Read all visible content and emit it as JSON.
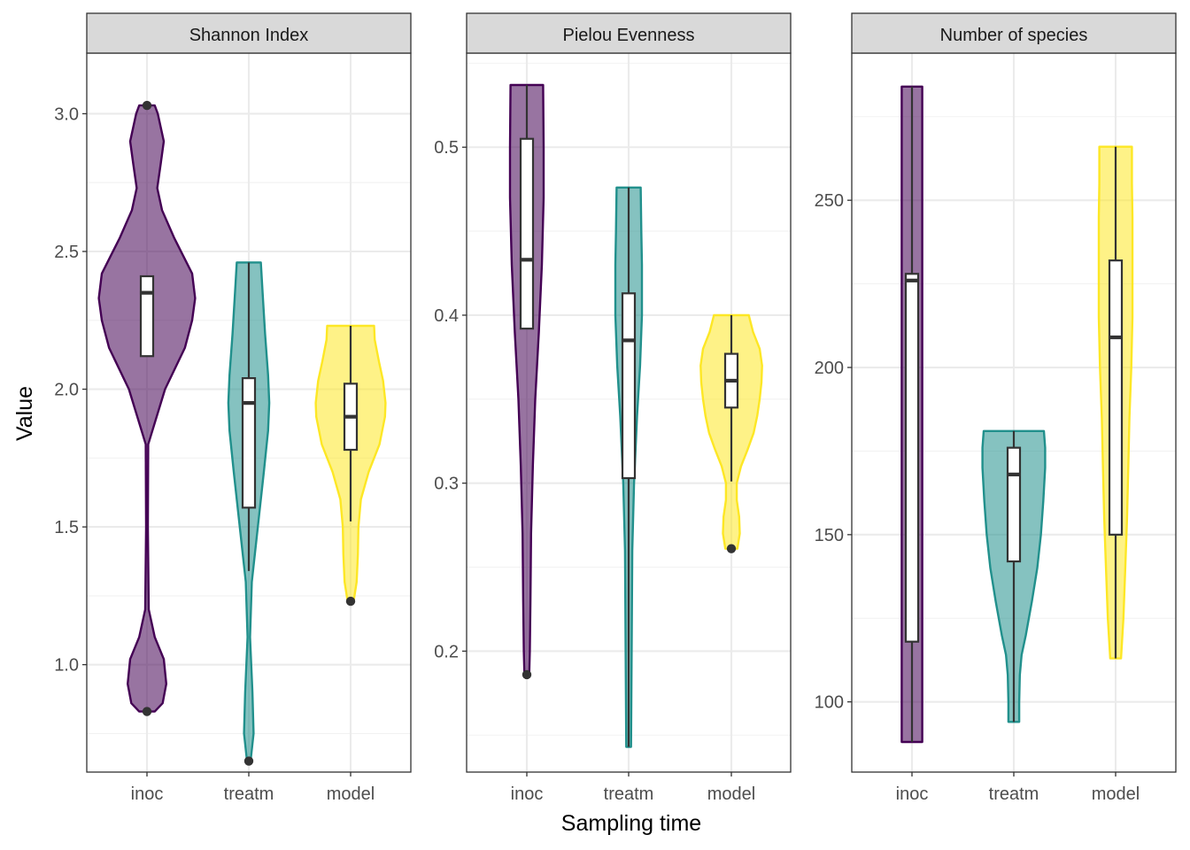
{
  "chart_data": {
    "type": "violin",
    "xlabel": "Sampling time",
    "ylabel": "Value",
    "categories": [
      "inoc",
      "treatm",
      "model"
    ],
    "colors": {
      "inoc": "#440154",
      "treatm": "#21908C",
      "model": "#FDE725"
    },
    "fill_opacity": 0.55,
    "grid": true,
    "legend": "none",
    "panels": [
      {
        "title": "Shannon Index",
        "ylim": [
          0.61,
          3.22
        ],
        "yticks": [
          1.0,
          1.5,
          2.0,
          2.5,
          3.0
        ],
        "tick_labels": [
          "1.0",
          "1.5",
          "2.0",
          "2.5",
          "3.0"
        ],
        "series": [
          {
            "name": "inoc",
            "min": 0.83,
            "max": 3.03,
            "q1": 2.12,
            "median": 2.35,
            "q3": 2.41,
            "whisker_low": 2.12,
            "whisker_high": 2.41,
            "outliers": [
              0.83,
              3.03
            ],
            "density": [
              [
                0.83,
                0.13
              ],
              [
                0.86,
                0.26
              ],
              [
                0.93,
                0.32
              ],
              [
                1.02,
                0.28
              ],
              [
                1.1,
                0.13
              ],
              [
                1.2,
                0.03
              ],
              [
                1.5,
                0.015
              ],
              [
                1.8,
                0.02
              ],
              [
                2.0,
                0.3
              ],
              [
                2.15,
                0.63
              ],
              [
                2.25,
                0.75
              ],
              [
                2.33,
                0.8
              ],
              [
                2.42,
                0.75
              ],
              [
                2.55,
                0.45
              ],
              [
                2.65,
                0.25
              ],
              [
                2.73,
                0.17
              ],
              [
                2.82,
                0.23
              ],
              [
                2.9,
                0.28
              ],
              [
                3.0,
                0.18
              ],
              [
                3.03,
                0.13
              ]
            ]
          },
          {
            "name": "treatm",
            "min": 0.65,
            "max": 2.46,
            "q1": 1.57,
            "median": 1.95,
            "q3": 2.04,
            "whisker_low": 1.34,
            "whisker_high": 2.46,
            "outliers": [
              0.65
            ],
            "density": [
              [
                0.65,
                0.03
              ],
              [
                0.75,
                0.08
              ],
              [
                0.9,
                0.06
              ],
              [
                1.1,
                0.02
              ],
              [
                1.3,
                0.05
              ],
              [
                1.5,
                0.15
              ],
              [
                1.7,
                0.25
              ],
              [
                1.85,
                0.32
              ],
              [
                1.95,
                0.34
              ],
              [
                2.05,
                0.32
              ],
              [
                2.2,
                0.27
              ],
              [
                2.35,
                0.23
              ],
              [
                2.46,
                0.2
              ]
            ]
          },
          {
            "name": "model",
            "min": 1.23,
            "max": 2.23,
            "q1": 1.78,
            "median": 1.9,
            "q3": 2.02,
            "whisker_low": 1.52,
            "whisker_high": 2.23,
            "outliers": [
              1.23
            ],
            "density": [
              [
                1.23,
                0.05
              ],
              [
                1.3,
                0.1
              ],
              [
                1.4,
                0.12
              ],
              [
                1.5,
                0.13
              ],
              [
                1.6,
                0.17
              ],
              [
                1.7,
                0.3
              ],
              [
                1.8,
                0.48
              ],
              [
                1.9,
                0.57
              ],
              [
                1.95,
                0.58
              ],
              [
                2.03,
                0.54
              ],
              [
                2.1,
                0.47
              ],
              [
                2.18,
                0.4
              ],
              [
                2.23,
                0.39
              ]
            ]
          }
        ]
      },
      {
        "title": "Pielou Evenness",
        "ylim": [
          0.128,
          0.556
        ],
        "yticks": [
          0.2,
          0.3,
          0.4,
          0.5
        ],
        "tick_labels": [
          "0.2",
          "0.3",
          "0.4",
          "0.5"
        ],
        "series": [
          {
            "name": "inoc",
            "min": 0.186,
            "max": 0.537,
            "q1": 0.392,
            "median": 0.433,
            "q3": 0.505,
            "whisker_low": 0.392,
            "whisker_high": 0.537,
            "outliers": [
              0.186
            ],
            "density": [
              [
                0.186,
                0.04
              ],
              [
                0.2,
                0.05
              ],
              [
                0.23,
                0.06
              ],
              [
                0.27,
                0.07
              ],
              [
                0.31,
                0.1
              ],
              [
                0.35,
                0.14
              ],
              [
                0.39,
                0.2
              ],
              [
                0.43,
                0.25
              ],
              [
                0.47,
                0.28
              ],
              [
                0.5,
                0.28
              ],
              [
                0.537,
                0.27
              ]
            ]
          },
          {
            "name": "treatm",
            "min": 0.143,
            "max": 0.476,
            "q1": 0.303,
            "median": 0.385,
            "q3": 0.413,
            "whisker_low": 0.143,
            "whisker_high": 0.476,
            "outliers": [],
            "density": [
              [
                0.143,
                0.04
              ],
              [
                0.2,
                0.05
              ],
              [
                0.26,
                0.06
              ],
              [
                0.3,
                0.09
              ],
              [
                0.34,
                0.14
              ],
              [
                0.37,
                0.19
              ],
              [
                0.4,
                0.22
              ],
              [
                0.43,
                0.22
              ],
              [
                0.45,
                0.21
              ],
              [
                0.476,
                0.2
              ]
            ]
          },
          {
            "name": "model",
            "min": 0.261,
            "max": 0.4,
            "q1": 0.345,
            "median": 0.361,
            "q3": 0.377,
            "whisker_low": 0.301,
            "whisker_high": 0.4,
            "outliers": [
              0.261
            ],
            "density": [
              [
                0.261,
                0.1
              ],
              [
                0.27,
                0.14
              ],
              [
                0.28,
                0.13
              ],
              [
                0.29,
                0.09
              ],
              [
                0.3,
                0.09
              ],
              [
                0.31,
                0.16
              ],
              [
                0.32,
                0.27
              ],
              [
                0.33,
                0.37
              ],
              [
                0.34,
                0.43
              ],
              [
                0.35,
                0.47
              ],
              [
                0.36,
                0.5
              ],
              [
                0.37,
                0.51
              ],
              [
                0.38,
                0.47
              ],
              [
                0.39,
                0.36
              ],
              [
                0.4,
                0.29
              ]
            ]
          }
        ]
      },
      {
        "title": "Number of species",
        "ylim": [
          79,
          294
        ],
        "yticks": [
          100,
          150,
          200,
          250
        ],
        "tick_labels": [
          "100",
          "150",
          "200",
          "250"
        ],
        "series": [
          {
            "name": "inoc",
            "min": 88,
            "max": 284,
            "q1": 118,
            "median": 226,
            "q3": 228,
            "whisker_low": 88,
            "whisker_high": 284,
            "outliers": [],
            "density": [
              [
                88,
                0.17
              ],
              [
                140,
                0.17
              ],
              [
                190,
                0.17
              ],
              [
                240,
                0.17
              ],
              [
                284,
                0.17
              ]
            ]
          },
          {
            "name": "treatm",
            "min": 94,
            "max": 181,
            "q1": 142,
            "median": 168,
            "q3": 176,
            "whisker_low": 94,
            "whisker_high": 181,
            "outliers": [],
            "density": [
              [
                94,
                0.09
              ],
              [
                100,
                0.09
              ],
              [
                108,
                0.1
              ],
              [
                114,
                0.13
              ],
              [
                120,
                0.2
              ],
              [
                130,
                0.3
              ],
              [
                140,
                0.39
              ],
              [
                150,
                0.45
              ],
              [
                160,
                0.49
              ],
              [
                170,
                0.52
              ],
              [
                176,
                0.52
              ],
              [
                181,
                0.5
              ]
            ]
          },
          {
            "name": "model",
            "min": 113,
            "max": 266,
            "q1": 150,
            "median": 209,
            "q3": 232,
            "whisker_low": 113,
            "whisker_high": 266,
            "outliers": [],
            "density": [
              [
                113,
                0.09
              ],
              [
                125,
                0.13
              ],
              [
                140,
                0.16
              ],
              [
                155,
                0.19
              ],
              [
                170,
                0.21
              ],
              [
                185,
                0.23
              ],
              [
                200,
                0.26
              ],
              [
                215,
                0.28
              ],
              [
                230,
                0.28
              ],
              [
                245,
                0.28
              ],
              [
                255,
                0.27
              ],
              [
                266,
                0.27
              ]
            ]
          }
        ]
      }
    ]
  }
}
